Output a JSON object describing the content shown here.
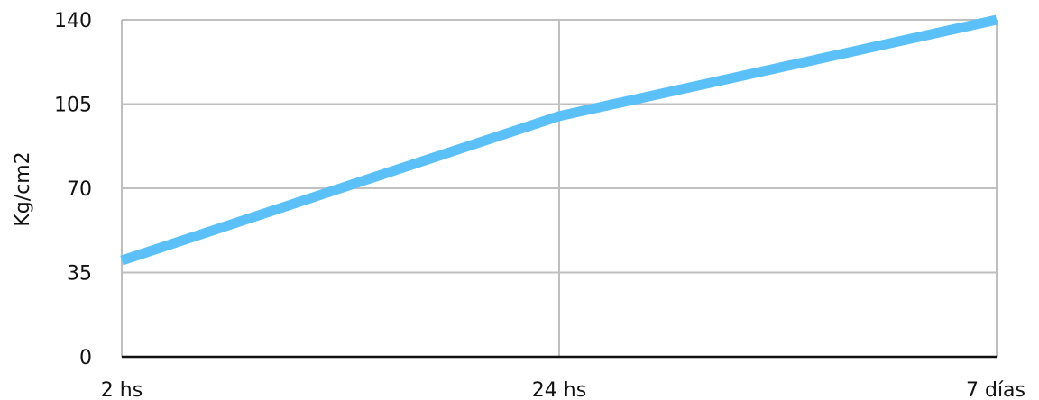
{
  "chart_data": {
    "type": "line",
    "title": "",
    "xlabel": "",
    "ylabel": "Kg/cm2",
    "categories": [
      "2 hs",
      "24 hs",
      "7 días"
    ],
    "series": [
      {
        "values": [
          40,
          100,
          140
        ]
      }
    ],
    "ylim": [
      0,
      140
    ],
    "yticks": [
      "0",
      "35",
      "70",
      "105",
      "140"
    ],
    "grid": true,
    "legend": "none",
    "line_color": "#5bc0f8",
    "grid_color": "#bfbfbf",
    "baseline_color": "#111111"
  }
}
